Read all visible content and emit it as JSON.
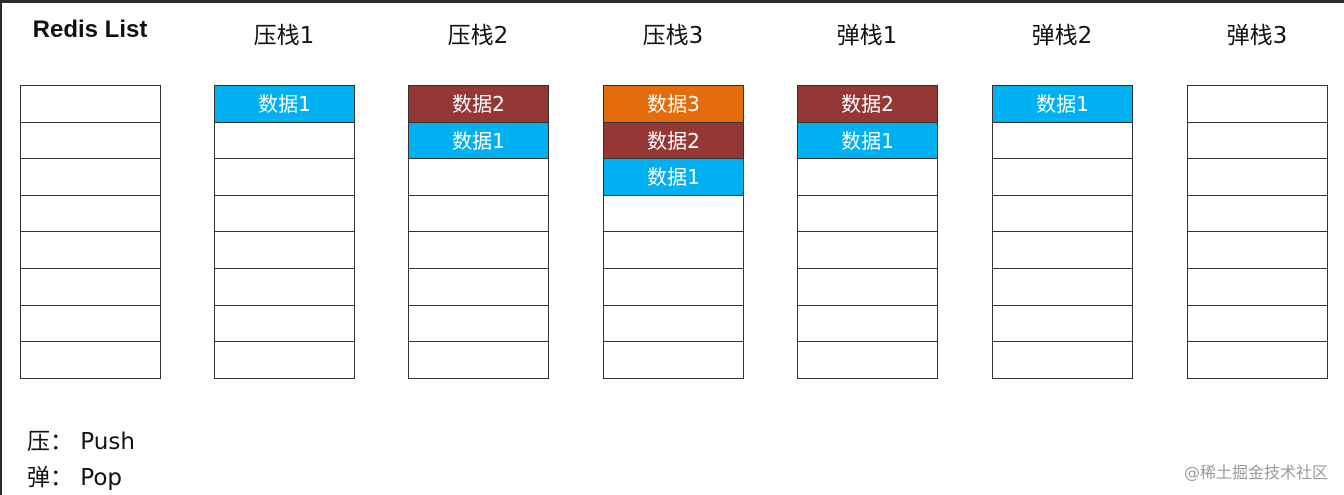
{
  "colors": {
    "data1": "#00B0F0",
    "data2": "#953735",
    "data3": "#E46C0A",
    "border": "#333333"
  },
  "rows_per_stack": 8,
  "columns": [
    {
      "title": "Redis List",
      "cells": []
    },
    {
      "title": "压栈1",
      "cells": [
        {
          "label": "数据1",
          "color": "data1"
        }
      ]
    },
    {
      "title": "压栈2",
      "cells": [
        {
          "label": "数据2",
          "color": "data2"
        },
        {
          "label": "数据1",
          "color": "data1"
        }
      ]
    },
    {
      "title": "压栈3",
      "cells": [
        {
          "label": "数据3",
          "color": "data3"
        },
        {
          "label": "数据2",
          "color": "data2"
        },
        {
          "label": "数据1",
          "color": "data1"
        }
      ]
    },
    {
      "title": "弹栈1",
      "cells": [
        {
          "label": "数据2",
          "color": "data2"
        },
        {
          "label": "数据1",
          "color": "data1"
        }
      ]
    },
    {
      "title": "弹栈2",
      "cells": [
        {
          "label": "数据1",
          "color": "data1"
        }
      ]
    },
    {
      "title": "弹栈3",
      "cells": []
    }
  ],
  "legend": {
    "push": "压：  Push",
    "pop": "弹：  Pop"
  },
  "watermark": "@稀土掘金技术社区"
}
